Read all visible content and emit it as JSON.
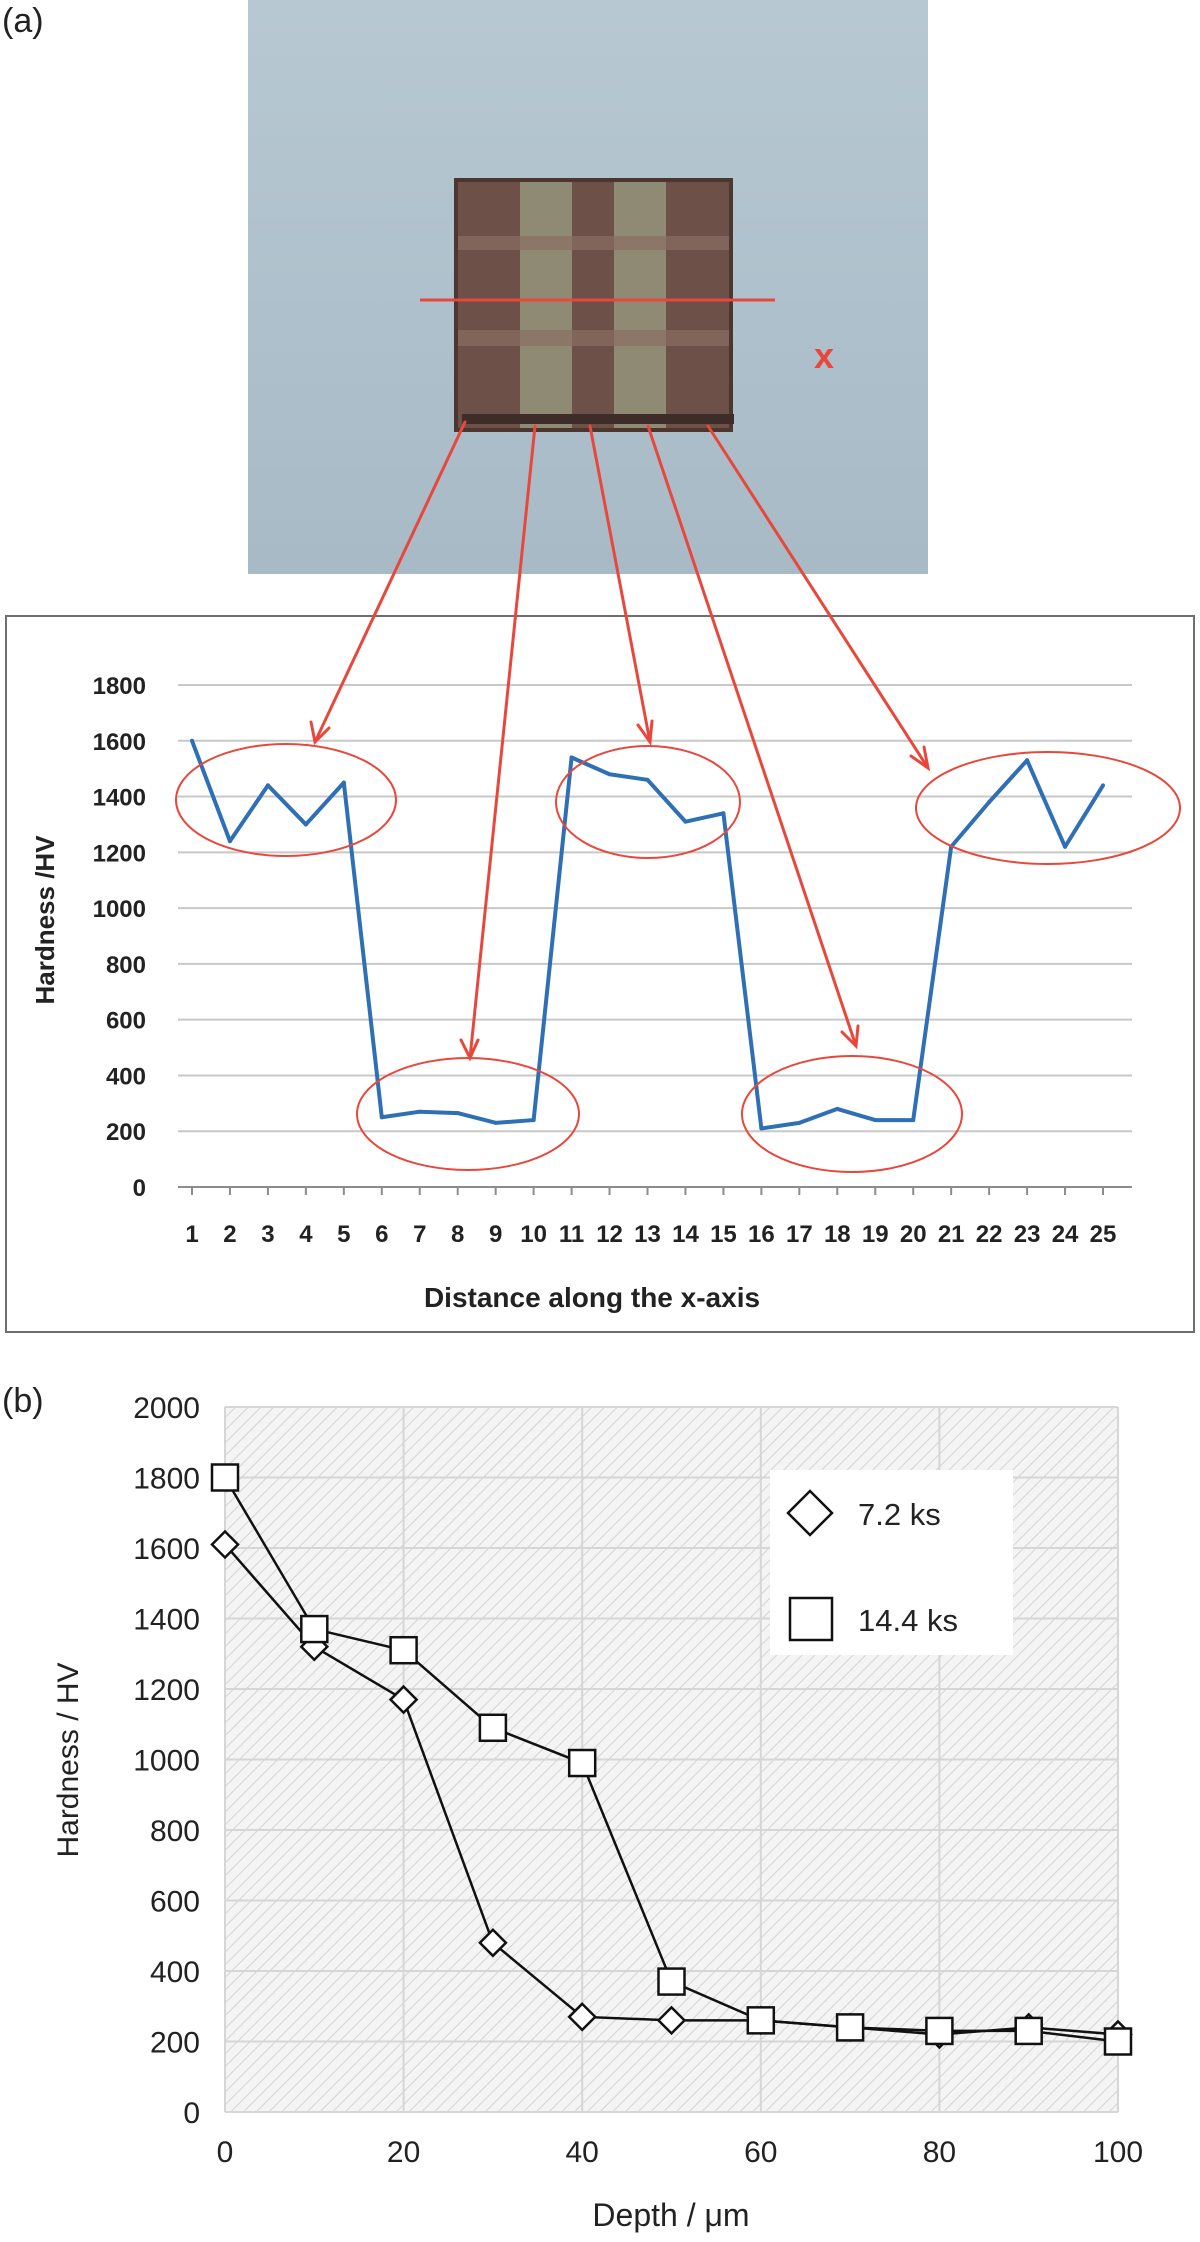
{
  "panel_labels": {
    "a": "(a)",
    "b": "(b)"
  },
  "photo": {
    "marker_label": "x"
  },
  "colors": {
    "series_a": "#2f6fb5",
    "annotation": "#e8483c",
    "axis_text": "#222222",
    "grid": "#c8c8c8"
  },
  "chart_data": [
    {
      "type": "line",
      "title": "",
      "xlabel": "Distance along the x-axis",
      "ylabel": "Hardness /HV",
      "ylim": [
        0,
        1800
      ],
      "yticks": [
        0,
        200,
        400,
        600,
        800,
        1000,
        1200,
        1400,
        1600,
        1800
      ],
      "categories": [
        "1",
        "2",
        "3",
        "4",
        "5",
        "6",
        "7",
        "8",
        "9",
        "10",
        "11",
        "12",
        "13",
        "14",
        "15",
        "16",
        "17",
        "18",
        "19",
        "20",
        "21",
        "22",
        "23",
        "24",
        "25"
      ],
      "series": [
        {
          "name": "Hardness",
          "values": [
            1600,
            1240,
            1440,
            1300,
            1450,
            250,
            270,
            265,
            230,
            240,
            1540,
            1480,
            1460,
            1310,
            1340,
            210,
            230,
            280,
            240,
            240,
            1220,
            1380,
            1530,
            1220,
            1440
          ]
        }
      ],
      "grid": true
    },
    {
      "type": "line",
      "title": "",
      "xlabel": "Depth / μm",
      "ylabel": "Hardness / HV",
      "xlim": [
        0,
        100
      ],
      "ylim": [
        0,
        2000
      ],
      "xticks": [
        0,
        20,
        40,
        60,
        80,
        100
      ],
      "yticks": [
        0,
        200,
        400,
        600,
        800,
        1000,
        1200,
        1400,
        1600,
        1800,
        2000
      ],
      "x": [
        0,
        10,
        20,
        30,
        40,
        50,
        60,
        70,
        80,
        90,
        100
      ],
      "series": [
        {
          "name": "7.2 ks",
          "marker": "diamond",
          "values": [
            1610,
            1320,
            1170,
            480,
            270,
            260,
            260,
            240,
            220,
            240,
            220
          ]
        },
        {
          "name": "14.4 ks",
          "marker": "square",
          "values": [
            1800,
            1370,
            1310,
            1090,
            990,
            370,
            260,
            240,
            230,
            230,
            200
          ]
        }
      ],
      "legend_position": "top-right",
      "grid": true
    }
  ]
}
